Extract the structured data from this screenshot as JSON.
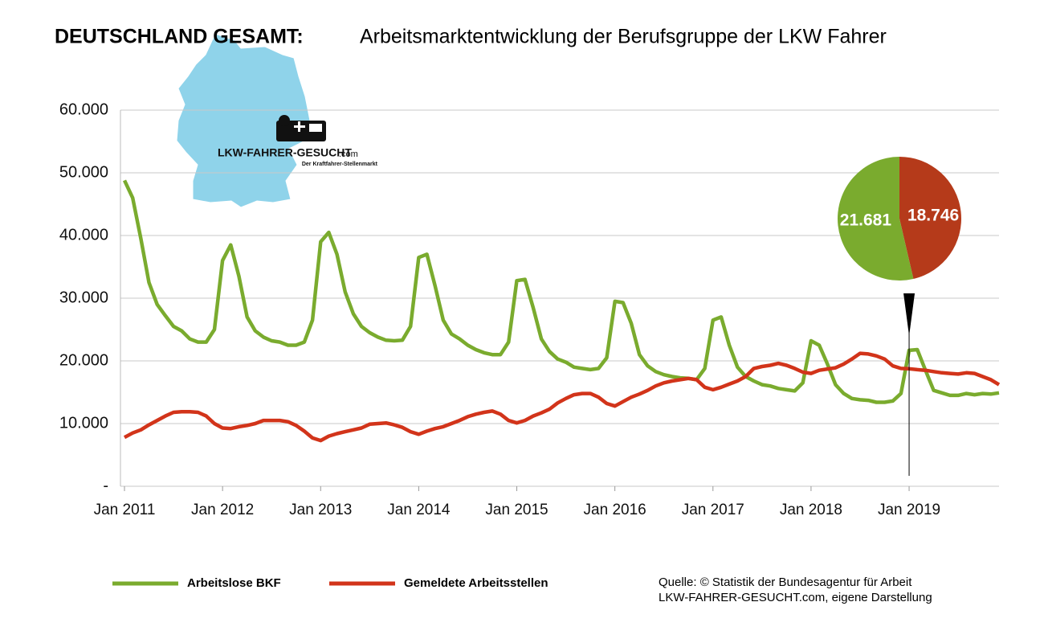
{
  "chart_data": [
    {
      "type": "line",
      "title": "DEUTSCHLAND GESAMT:",
      "subtitle": "Arbeitsmarktentwicklung der Berufsgruppe der LKW Fahrer",
      "categories": [
        "Jan 2011",
        null,
        null,
        null,
        null,
        null,
        null,
        null,
        null,
        null,
        null,
        null,
        "Jan 2012",
        null,
        null,
        null,
        null,
        null,
        null,
        null,
        null,
        null,
        null,
        null,
        "Jan 2013",
        null,
        null,
        null,
        null,
        null,
        null,
        null,
        null,
        null,
        null,
        null,
        "Jan 2014",
        null,
        null,
        null,
        null,
        null,
        null,
        null,
        null,
        null,
        null,
        null,
        "Jan 2015",
        null,
        null,
        null,
        null,
        null,
        null,
        null,
        null,
        null,
        null,
        null,
        "Jan 2016",
        null,
        null,
        null,
        null,
        null,
        null,
        null,
        null,
        null,
        null,
        null,
        "Jan 2017",
        null,
        null,
        null,
        null,
        null,
        null,
        null,
        null,
        null,
        null,
        null,
        "Jan 2018",
        null,
        null,
        null,
        null,
        null,
        null,
        null,
        null,
        null,
        null,
        null,
        "Jan 2019",
        null,
        null,
        null,
        null,
        null,
        null,
        null,
        null,
        null,
        null,
        null
      ],
      "series": [
        {
          "name": "Arbeitslose BKF",
          "color": "#7aab2e",
          "values": [
            48800,
            46000,
            39500,
            32500,
            29000,
            27200,
            25500,
            24800,
            23500,
            23000,
            23000,
            25000,
            36000,
            38500,
            33500,
            27000,
            24800,
            23800,
            23200,
            23000,
            22500,
            22500,
            23000,
            26500,
            39000,
            40500,
            37000,
            31000,
            27500,
            25500,
            24500,
            23800,
            23300,
            23200,
            23300,
            25500,
            36500,
            37000,
            32000,
            26500,
            24300,
            23500,
            22500,
            21800,
            21300,
            21000,
            21000,
            23000,
            32800,
            33000,
            28500,
            23500,
            21500,
            20300,
            19800,
            19000,
            18800,
            18600,
            18800,
            20500,
            29500,
            29300,
            26000,
            21000,
            19200,
            18300,
            17800,
            17500,
            17300,
            17200,
            17000,
            18800,
            26500,
            27000,
            22500,
            19000,
            17500,
            16800,
            16200,
            16000,
            15600,
            15400,
            15200,
            16500,
            23200,
            22500,
            19500,
            16200,
            14800,
            14000,
            13800,
            13700,
            13400,
            13400,
            13600,
            14800,
            21681,
            21800,
            18500,
            15300,
            14900,
            14500,
            14500,
            14800,
            14600,
            14800,
            14700,
            14900
          ]
        },
        {
          "name": "Gemeldete Arbeitsstellen",
          "color": "#d2341a",
          "values": [
            7800,
            8500,
            9000,
            9800,
            10500,
            11200,
            11800,
            11900,
            11900,
            11800,
            11200,
            10000,
            9300,
            9200,
            9500,
            9700,
            10000,
            10500,
            10500,
            10500,
            10300,
            9700,
            8800,
            7700,
            7300,
            8000,
            8400,
            8700,
            9000,
            9300,
            9900,
            10000,
            10100,
            9800,
            9400,
            8700,
            8300,
            8800,
            9200,
            9500,
            10000,
            10500,
            11100,
            11500,
            11800,
            12000,
            11500,
            10500,
            10100,
            10500,
            11200,
            11700,
            12300,
            13300,
            14000,
            14600,
            14800,
            14800,
            14200,
            13200,
            12800,
            13500,
            14200,
            14700,
            15300,
            16000,
            16500,
            16800,
            17000,
            17200,
            17000,
            15800,
            15400,
            15800,
            16300,
            16800,
            17500,
            18800,
            19100,
            19300,
            19600,
            19300,
            18800,
            18200,
            18000,
            18500,
            18700,
            18900,
            19500,
            20300,
            21200,
            21100,
            20800,
            20300,
            19200,
            18800,
            18746,
            18600,
            18500,
            18300,
            18100,
            18000,
            17900,
            18100,
            18000,
            17500,
            17000,
            16200
          ]
        }
      ],
      "ylim": [
        0,
        60000
      ],
      "yticks": [
        {
          "value": 0,
          "label": "-"
        },
        {
          "value": 10000,
          "label": "10.000"
        },
        {
          "value": 20000,
          "label": "20.000"
        },
        {
          "value": 30000,
          "label": "30.000"
        },
        {
          "value": 40000,
          "label": "40.000"
        },
        {
          "value": 50000,
          "label": "50.000"
        },
        {
          "value": 60000,
          "label": "60.000"
        }
      ],
      "grid": true,
      "legend": "bottom",
      "source": [
        "Quelle: © Statistik der Bundesagentur für Arbeit",
        "LKW-FAHRER-GESUCHT.com, eigene Darstellung"
      ]
    },
    {
      "type": "pie",
      "values": [
        21681,
        18746
      ],
      "value_labels": [
        "21.681",
        "18.746"
      ],
      "colors": [
        "#7aab2e",
        "#b53a1a"
      ]
    }
  ],
  "logo": {
    "name": "LKW-FAHRER-GESUCHT",
    "suffix": ".com",
    "tagline": "Der Kraftfahrer-Stellenmarkt"
  }
}
